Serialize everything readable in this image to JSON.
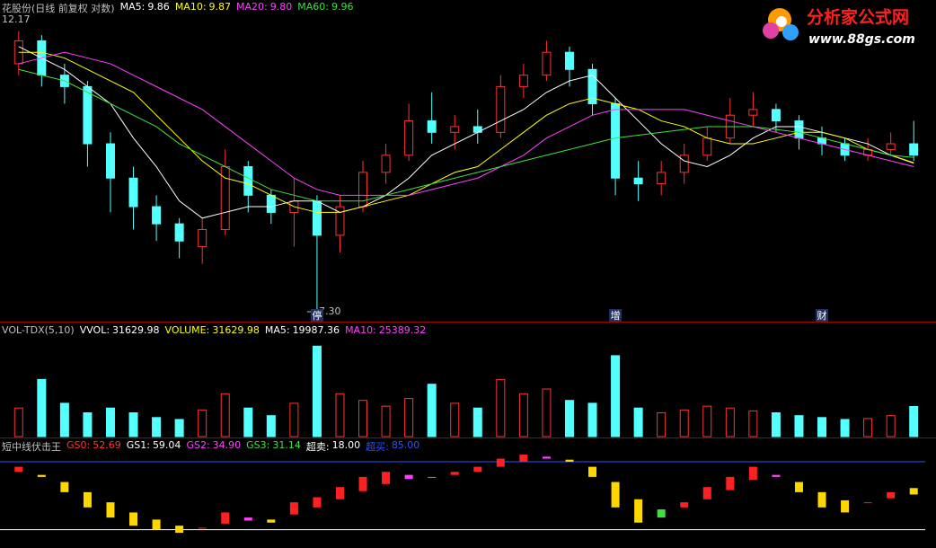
{
  "logo": {
    "name": "分析家公式网",
    "url": "www.88gs.com"
  },
  "chart_data": [
    {
      "type": "candlestick",
      "title": "花股份(日线 前复权 对数)",
      "ylim": [
        7.2,
        12.4
      ],
      "up_color": "#ff3232",
      "down_color": "#54ffff",
      "annotations": [
        "12.17",
        "7.30"
      ],
      "event_markers": [
        {
          "label": "停",
          "index": 13
        },
        {
          "label": "增",
          "index": 26
        },
        {
          "label": "财",
          "index": 35
        }
      ],
      "open": [
        11.6,
        12.0,
        11.4,
        11.2,
        10.2,
        9.6,
        9.1,
        8.8,
        8.4,
        8.7,
        9.8,
        9.3,
        9.0,
        9.2,
        8.6,
        9.1,
        9.7,
        10.0,
        10.6,
        10.4,
        10.5,
        10.4,
        11.2,
        11.4,
        11.8,
        11.5,
        10.9,
        9.6,
        9.5,
        9.7,
        10.0,
        10.3,
        10.7,
        10.8,
        10.6,
        10.3,
        10.2,
        10.0,
        10.1,
        10.2
      ],
      "high": [
        12.17,
        12.1,
        11.6,
        11.3,
        10.4,
        9.8,
        9.3,
        8.9,
        8.9,
        10.1,
        9.9,
        9.4,
        9.6,
        9.3,
        9.3,
        9.9,
        10.2,
        10.9,
        11.1,
        10.7,
        10.8,
        11.4,
        11.6,
        12.0,
        11.9,
        11.6,
        11.0,
        9.9,
        9.9,
        10.2,
        10.5,
        11.0,
        11.1,
        10.9,
        10.7,
        10.5,
        10.3,
        10.3,
        10.4,
        10.6
      ],
      "low": [
        11.4,
        11.2,
        10.9,
        9.8,
        9.0,
        8.7,
        8.5,
        8.2,
        8.1,
        8.6,
        9.0,
        8.8,
        8.4,
        7.3,
        8.3,
        9.0,
        9.5,
        9.9,
        10.2,
        10.1,
        10.2,
        10.3,
        11.0,
        11.3,
        11.2,
        10.7,
        9.3,
        9.2,
        9.3,
        9.5,
        9.9,
        10.2,
        10.5,
        10.4,
        10.1,
        10.0,
        9.9,
        9.9,
        10.0,
        9.9
      ],
      "close": [
        12.0,
        11.4,
        11.2,
        10.2,
        9.6,
        9.1,
        8.8,
        8.5,
        8.7,
        9.8,
        9.3,
        9.0,
        9.2,
        8.6,
        9.1,
        9.7,
        10.0,
        10.6,
        10.4,
        10.5,
        10.4,
        11.2,
        11.4,
        11.8,
        11.5,
        10.9,
        9.6,
        9.5,
        9.7,
        10.0,
        10.3,
        10.7,
        10.8,
        10.6,
        10.3,
        10.2,
        10.0,
        10.1,
        10.2,
        10.0
      ],
      "series": [
        {
          "name": "MA5:",
          "color": "#ffffff",
          "legend_value": 9.86,
          "values": [
            11.9,
            11.7,
            11.5,
            11.2,
            10.9,
            10.3,
            9.8,
            9.2,
            8.9,
            9.0,
            9.1,
            9.1,
            9.2,
            9.2,
            9.0,
            9.1,
            9.3,
            9.6,
            10.0,
            10.2,
            10.4,
            10.6,
            10.8,
            11.1,
            11.3,
            11.4,
            11.0,
            10.6,
            10.2,
            9.9,
            9.8,
            10.0,
            10.3,
            10.5,
            10.5,
            10.4,
            10.3,
            10.2,
            10.0,
            9.86
          ]
        },
        {
          "name": "MA10:",
          "color": "#ffff00",
          "legend_value": 9.87,
          "values": [
            11.8,
            11.8,
            11.7,
            11.5,
            11.3,
            11.1,
            10.7,
            10.3,
            9.9,
            9.6,
            9.5,
            9.3,
            9.1,
            9.0,
            9.0,
            9.1,
            9.2,
            9.3,
            9.5,
            9.7,
            9.8,
            10.1,
            10.4,
            10.7,
            10.9,
            11.0,
            10.9,
            10.8,
            10.6,
            10.5,
            10.3,
            10.2,
            10.2,
            10.3,
            10.4,
            10.4,
            10.3,
            10.1,
            10.0,
            9.87
          ]
        },
        {
          "name": "MA20:",
          "color": "#ff40ff",
          "legend_value": 9.8,
          "legend_label": "9.80",
          "values": [
            11.6,
            11.7,
            11.8,
            11.7,
            11.6,
            11.4,
            11.2,
            11.0,
            10.8,
            10.5,
            10.2,
            9.9,
            9.6,
            9.4,
            9.3,
            9.3,
            9.3,
            9.3,
            9.4,
            9.5,
            9.6,
            9.8,
            10.0,
            10.3,
            10.5,
            10.7,
            10.8,
            10.8,
            10.8,
            10.8,
            10.7,
            10.6,
            10.5,
            10.4,
            10.3,
            10.2,
            10.1,
            10.0,
            9.9,
            9.8
          ]
        },
        {
          "name": "MA60:",
          "color": "#40e040",
          "legend_value": 9.96,
          "values": [
            11.5,
            11.4,
            11.3,
            11.1,
            10.9,
            10.7,
            10.5,
            10.2,
            10.0,
            9.8,
            9.6,
            9.4,
            9.3,
            9.2,
            9.2,
            9.2,
            9.3,
            9.4,
            9.5,
            9.6,
            9.7,
            9.8,
            9.9,
            10.0,
            10.1,
            10.2,
            10.3,
            10.35,
            10.4,
            10.45,
            10.5,
            10.5,
            10.5,
            10.45,
            10.4,
            10.3,
            10.2,
            10.1,
            10.0,
            9.96
          ]
        }
      ]
    },
    {
      "type": "bar",
      "title": "VOL-TDX(5,10)",
      "ylim": [
        0,
        100000
      ],
      "items": [
        {
          "name": "VVOL:",
          "value": 31629.98,
          "color": "#ffffff"
        },
        {
          "name": "VOLUME:",
          "value": 31629.98,
          "color": "#ffff00"
        },
        {
          "name": "MA5:",
          "value": 19987.36,
          "color": "#ffffff"
        },
        {
          "name": "MA10:",
          "value": 25389.32,
          "color": "#ff40ff"
        }
      ],
      "values": [
        30000,
        60000,
        35000,
        25000,
        30000,
        25000,
        20000,
        18000,
        28000,
        45000,
        30000,
        22000,
        35000,
        95000,
        45000,
        38000,
        32000,
        40000,
        55000,
        35000,
        30000,
        60000,
        45000,
        50000,
        38000,
        35000,
        85000,
        30000,
        25000,
        28000,
        32000,
        30000,
        27000,
        25000,
        22000,
        20000,
        18000,
        19000,
        22000,
        31629.98
      ]
    },
    {
      "type": "band",
      "title": "短中线伏击王",
      "ylim": [
        0,
        100
      ],
      "colors": {
        "rise_above": "#ff2020",
        "fall_above": "#ff40ff",
        "fall_below": "#ffd700",
        "rise_below": "#40e040"
      },
      "items": [
        {
          "name": "GS0:",
          "value": 52.69,
          "color": "#ff3232"
        },
        {
          "name": "GS1:",
          "value": 59.04,
          "color": "#ffffff"
        },
        {
          "name": "GS2:",
          "value": 34.9,
          "label": "34.90",
          "color": "#ff40ff"
        },
        {
          "name": "GS3:",
          "value": 31.14,
          "color": "#40e040"
        },
        {
          "name": "超卖:",
          "value": 18,
          "label": "18.00",
          "color": "#ffffff",
          "level": true
        },
        {
          "name": "超买:",
          "value": 85,
          "label": "85.00",
          "color": "#3050ff",
          "level": true
        }
      ],
      "series": [
        {
          "name": "GS0",
          "values": [
            80,
            70,
            55,
            40,
            30,
            22,
            18,
            15,
            20,
            35,
            30,
            25,
            45,
            50,
            60,
            70,
            75,
            72,
            70,
            75,
            80,
            88,
            92,
            90,
            85,
            70,
            40,
            25,
            30,
            45,
            60,
            70,
            80,
            72,
            55,
            40,
            35,
            45,
            55,
            52.69
          ]
        },
        {
          "name": "GS1",
          "values": [
            75,
            72,
            65,
            55,
            45,
            35,
            28,
            22,
            20,
            24,
            27,
            28,
            33,
            40,
            48,
            56,
            63,
            68,
            70,
            72,
            75,
            80,
            85,
            88,
            87,
            80,
            65,
            48,
            38,
            40,
            48,
            57,
            67,
            70,
            65,
            55,
            47,
            45,
            49,
            59.04
          ]
        }
      ]
    }
  ]
}
